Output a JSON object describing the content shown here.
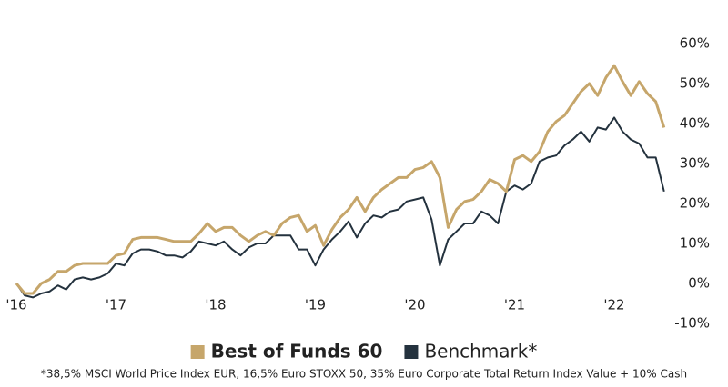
{
  "chart_data": {
    "type": "line",
    "categories": [
      "'16",
      null,
      null,
      null,
      null,
      null,
      null,
      null,
      null,
      null,
      null,
      null,
      "'17",
      null,
      null,
      null,
      null,
      null,
      null,
      null,
      null,
      null,
      null,
      null,
      "'18",
      null,
      null,
      null,
      null,
      null,
      null,
      null,
      null,
      null,
      null,
      null,
      "'19",
      null,
      null,
      null,
      null,
      null,
      null,
      null,
      null,
      null,
      null,
      null,
      "'20",
      null,
      null,
      null,
      null,
      null,
      null,
      null,
      null,
      null,
      null,
      null,
      "'21",
      null,
      null,
      null,
      null,
      null,
      null,
      null,
      null,
      null,
      null,
      null,
      "'22",
      null,
      null,
      null,
      null,
      null,
      null
    ],
    "series": [
      {
        "name": "Best of Funds 60",
        "color": "#c6a66b",
        "values": [
          0,
          -2.5,
          -2.5,
          0,
          1,
          3,
          3,
          4.5,
          5,
          5,
          5,
          5,
          7,
          7.5,
          11,
          11.5,
          11.5,
          11.5,
          11,
          10.5,
          10.5,
          10.5,
          12.5,
          15,
          13,
          14,
          14,
          12,
          10.5,
          12,
          13,
          12,
          15,
          16.5,
          17,
          13,
          14.5,
          9.5,
          13.5,
          16.5,
          18.5,
          21.5,
          18,
          21.5,
          23.5,
          25,
          26.5,
          26.5,
          28.5,
          29,
          30.5,
          26.5,
          14,
          18.5,
          20.5,
          21,
          23,
          26,
          25,
          23,
          31,
          32,
          30.5,
          33,
          38,
          40.5,
          42,
          45,
          48,
          50,
          47,
          51.5,
          54.5,
          50.5,
          47,
          50.5,
          47.5,
          45.5,
          39
        ]
      },
      {
        "name": "Benchmark*",
        "color": "#24323e",
        "values": [
          0,
          -3,
          -3.5,
          -2.5,
          -2,
          -0.5,
          -1.5,
          1,
          1.5,
          1,
          1.5,
          2.5,
          5,
          4.5,
          7.5,
          8.5,
          8.5,
          8,
          7,
          7,
          6.5,
          8,
          10.5,
          10,
          9.5,
          10.5,
          8.5,
          7,
          9,
          10,
          10,
          12,
          12,
          12,
          8.5,
          8.5,
          4.5,
          8.5,
          11,
          13,
          15.5,
          11.5,
          15,
          17,
          16.5,
          18,
          18.5,
          20.5,
          21,
          21.5,
          16,
          4.5,
          11,
          13,
          15,
          15,
          18,
          17,
          15,
          23,
          24.5,
          23.5,
          25,
          30.5,
          31.5,
          32,
          34.5,
          36,
          38,
          35.5,
          39,
          38.5,
          41.5,
          38,
          36,
          35,
          31.5,
          31.5,
          23
        ]
      }
    ],
    "ylim": [
      -10,
      60
    ],
    "yticks": [
      {
        "value": -10,
        "label": "-10%"
      },
      {
        "value": 0,
        "label": "0%"
      },
      {
        "value": 10,
        "label": "10%"
      },
      {
        "value": 20,
        "label": "20%"
      },
      {
        "value": 30,
        "label": "30%"
      },
      {
        "value": 40,
        "label": "40%"
      },
      {
        "value": 50,
        "label": "50%"
      },
      {
        "value": 60,
        "label": "60%"
      }
    ],
    "footnote": "*38,5% MSCI World Price Index EUR, 16,5% Euro STOXX 50, 35% Euro Corporate Total Return Index Value + 10% Cash"
  }
}
